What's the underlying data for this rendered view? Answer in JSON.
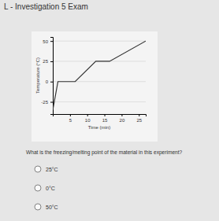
{
  "header": {
    "title": "L - Investigation 5 Exam"
  },
  "chart_data": {
    "type": "line",
    "y_label": "Temperature (°C)",
    "x_label": "Time (min)",
    "x": [
      0,
      1.5,
      6.5,
      12.5,
      16.5,
      27
    ],
    "values": [
      -35,
      0,
      0,
      25,
      25,
      50
    ],
    "color": "#333333",
    "xlim": [
      0,
      27
    ],
    "xticks": [
      5,
      10,
      15,
      20,
      25
    ],
    "ylim": [
      -40,
      55
    ],
    "yticks": [
      -25,
      0,
      25,
      50
    ],
    "grid": true
  },
  "question": {
    "text": "What is the freezing/melting point of the material in this experiment?",
    "options": [
      "25°C",
      "0°C",
      "50°C"
    ]
  }
}
